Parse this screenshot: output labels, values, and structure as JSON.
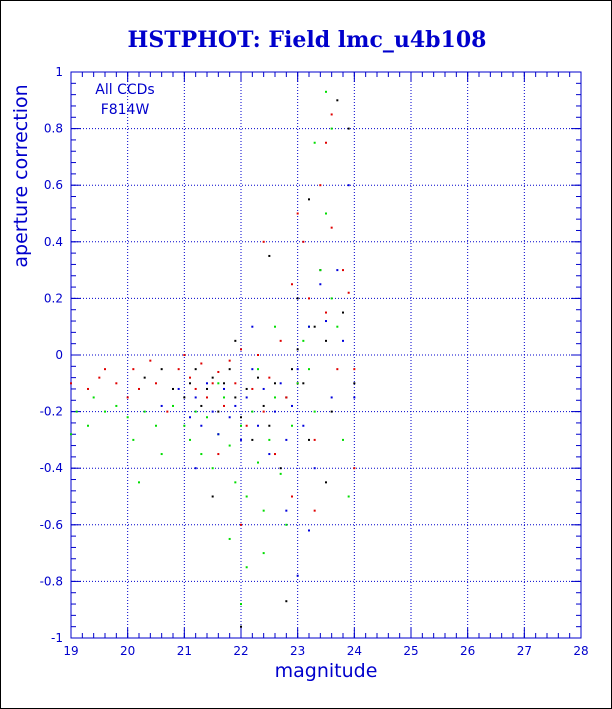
{
  "chart_data": {
    "type": "scatter",
    "title": "HSTPHOT: Field lmc_u4b108",
    "xlabel": "magnitude",
    "ylabel": "aperture correction",
    "xlim": [
      19,
      28
    ],
    "ylim": [
      -1,
      1
    ],
    "x_ticks": [
      19,
      20,
      21,
      22,
      23,
      24,
      25,
      26,
      27,
      28
    ],
    "y_ticks": [
      -1,
      -0.8,
      -0.6,
      -0.4,
      -0.2,
      0,
      0.2,
      0.4,
      0.6,
      0.8,
      1
    ],
    "grid": "dotted",
    "annotations": [
      "All CCDs",
      "F814W"
    ],
    "colors": {
      "axis": "#0000cc",
      "title": "#0000cc",
      "black": "#000000",
      "red": "#e00000",
      "green": "#00dd00",
      "blue": "#0000dd"
    },
    "series": [
      {
        "color": "black",
        "points": [
          [
            20.3,
            -0.08
          ],
          [
            20.6,
            -0.05
          ],
          [
            20.8,
            -0.12
          ],
          [
            21.0,
            -0.15
          ],
          [
            21.1,
            -0.1
          ],
          [
            21.2,
            -0.05
          ],
          [
            21.3,
            -0.18
          ],
          [
            21.4,
            -0.12
          ],
          [
            21.5,
            -0.08
          ],
          [
            21.6,
            -0.2
          ],
          [
            21.7,
            -0.1
          ],
          [
            21.8,
            -0.05
          ],
          [
            21.9,
            -0.15
          ],
          [
            22.0,
            -0.22
          ],
          [
            22.1,
            -0.12
          ],
          [
            22.2,
            -0.3
          ],
          [
            22.3,
            -0.08
          ],
          [
            22.4,
            -0.18
          ],
          [
            22.5,
            -0.25
          ],
          [
            22.6,
            -0.1
          ],
          [
            22.7,
            -0.4
          ],
          [
            22.8,
            -0.15
          ],
          [
            22.9,
            -0.05
          ],
          [
            23.0,
            0.02
          ],
          [
            23.1,
            -0.1
          ],
          [
            23.2,
            -0.3
          ],
          [
            23.3,
            0.1
          ],
          [
            23.4,
            0.3
          ],
          [
            23.5,
            0.05
          ],
          [
            23.6,
            -0.2
          ],
          [
            23.7,
            0.9
          ],
          [
            23.8,
            0.15
          ],
          [
            23.9,
            0.8
          ],
          [
            23.2,
            0.55
          ],
          [
            22.8,
            -0.87
          ],
          [
            22.0,
            -0.96
          ],
          [
            21.5,
            -0.5
          ],
          [
            22.5,
            0.35
          ],
          [
            23.0,
            0.2
          ],
          [
            21.9,
            0.05
          ],
          [
            23.5,
            -0.45
          ],
          [
            24.0,
            -0.1
          ]
        ]
      },
      {
        "color": "red",
        "points": [
          [
            19.0,
            -0.1
          ],
          [
            19.3,
            -0.12
          ],
          [
            19.5,
            -0.08
          ],
          [
            19.6,
            -0.05
          ],
          [
            19.8,
            -0.1
          ],
          [
            20.0,
            -0.15
          ],
          [
            20.1,
            -0.05
          ],
          [
            20.2,
            -0.12
          ],
          [
            20.4,
            -0.02
          ],
          [
            20.5,
            -0.1
          ],
          [
            20.7,
            -0.2
          ],
          [
            20.9,
            -0.05
          ],
          [
            21.0,
            0.0
          ],
          [
            21.1,
            -0.08
          ],
          [
            21.2,
            -0.12
          ],
          [
            21.3,
            -0.03
          ],
          [
            21.4,
            -0.15
          ],
          [
            21.5,
            -0.1
          ],
          [
            21.6,
            -0.06
          ],
          [
            21.7,
            -0.18
          ],
          [
            21.8,
            -0.02
          ],
          [
            21.9,
            -0.1
          ],
          [
            22.0,
            0.02
          ],
          [
            22.1,
            -0.25
          ],
          [
            22.2,
            -0.12
          ],
          [
            22.3,
            0.0
          ],
          [
            22.4,
            -0.2
          ],
          [
            22.5,
            -0.08
          ],
          [
            22.6,
            -0.35
          ],
          [
            22.7,
            0.05
          ],
          [
            22.8,
            -0.15
          ],
          [
            22.9,
            0.25
          ],
          [
            23.0,
            -0.1
          ],
          [
            23.1,
            0.4
          ],
          [
            23.2,
            0.2
          ],
          [
            23.3,
            -0.3
          ],
          [
            23.4,
            0.6
          ],
          [
            23.5,
            0.15
          ],
          [
            23.6,
            0.45
          ],
          [
            23.7,
            -0.05
          ],
          [
            23.8,
            0.3
          ],
          [
            23.9,
            0.22
          ],
          [
            24.0,
            -0.4
          ],
          [
            23.5,
            0.75
          ],
          [
            23.6,
            0.85
          ],
          [
            22.4,
            0.4
          ],
          [
            22.9,
            -0.5
          ],
          [
            23.3,
            -0.55
          ],
          [
            21.6,
            -0.35
          ],
          [
            22.0,
            -0.6
          ],
          [
            24.0,
            -0.05
          ],
          [
            23.0,
            0.5
          ]
        ]
      },
      {
        "color": "green",
        "points": [
          [
            19.0,
            -0.28
          ],
          [
            19.1,
            -0.2
          ],
          [
            19.3,
            -0.25
          ],
          [
            19.4,
            -0.15
          ],
          [
            19.6,
            -0.2
          ],
          [
            19.8,
            -0.18
          ],
          [
            20.0,
            -0.22
          ],
          [
            20.1,
            -0.3
          ],
          [
            20.3,
            -0.2
          ],
          [
            20.5,
            -0.25
          ],
          [
            20.6,
            -0.35
          ],
          [
            20.8,
            -0.18
          ],
          [
            21.0,
            -0.25
          ],
          [
            21.1,
            -0.3
          ],
          [
            21.2,
            -0.2
          ],
          [
            21.3,
            -0.35
          ],
          [
            21.4,
            -0.22
          ],
          [
            21.5,
            -0.4
          ],
          [
            21.6,
            -0.28
          ],
          [
            21.7,
            -0.15
          ],
          [
            21.8,
            -0.32
          ],
          [
            21.9,
            -0.45
          ],
          [
            22.0,
            -0.25
          ],
          [
            22.1,
            -0.5
          ],
          [
            22.2,
            -0.2
          ],
          [
            22.3,
            -0.38
          ],
          [
            22.4,
            -0.55
          ],
          [
            22.5,
            -0.3
          ],
          [
            22.6,
            -0.15
          ],
          [
            22.7,
            -0.42
          ],
          [
            22.8,
            -0.6
          ],
          [
            22.9,
            -0.25
          ],
          [
            23.0,
            -0.1
          ],
          [
            23.1,
            0.05
          ],
          [
            23.2,
            0.1
          ],
          [
            23.3,
            -0.2
          ],
          [
            23.4,
            0.3
          ],
          [
            23.5,
            0.5
          ],
          [
            23.6,
            0.2
          ],
          [
            23.7,
            0.1
          ],
          [
            23.8,
            -0.3
          ],
          [
            23.9,
            -0.5
          ],
          [
            23.5,
            0.93
          ],
          [
            23.6,
            0.8
          ],
          [
            22.0,
            -0.88
          ],
          [
            22.4,
            -0.7
          ],
          [
            22.1,
            -0.75
          ],
          [
            21.8,
            -0.65
          ],
          [
            22.6,
            0.1
          ],
          [
            22.3,
            -0.05
          ],
          [
            21.6,
            -0.1
          ],
          [
            23.3,
            0.75
          ],
          [
            23.2,
            -0.05
          ],
          [
            20.2,
            -0.45
          ]
        ]
      },
      {
        "color": "blue",
        "points": [
          [
            20.6,
            -0.18
          ],
          [
            20.9,
            -0.12
          ],
          [
            21.1,
            -0.22
          ],
          [
            21.2,
            -0.15
          ],
          [
            21.3,
            -0.25
          ],
          [
            21.4,
            -0.1
          ],
          [
            21.5,
            -0.2
          ],
          [
            21.6,
            -0.28
          ],
          [
            21.7,
            -0.12
          ],
          [
            21.8,
            -0.22
          ],
          [
            21.9,
            -0.18
          ],
          [
            22.0,
            -0.3
          ],
          [
            22.1,
            -0.15
          ],
          [
            22.2,
            -0.05
          ],
          [
            22.3,
            -0.25
          ],
          [
            22.4,
            -0.12
          ],
          [
            22.5,
            -0.35
          ],
          [
            22.6,
            -0.2
          ],
          [
            22.7,
            -0.1
          ],
          [
            22.8,
            -0.3
          ],
          [
            22.9,
            -0.18
          ],
          [
            23.0,
            -0.05
          ],
          [
            23.1,
            -0.25
          ],
          [
            23.2,
            0.1
          ],
          [
            23.3,
            -0.4
          ],
          [
            23.4,
            0.25
          ],
          [
            23.5,
            0.12
          ],
          [
            23.6,
            -0.15
          ],
          [
            23.7,
            0.3
          ],
          [
            23.8,
            0.05
          ],
          [
            23.9,
            0.6
          ],
          [
            24.0,
            -0.15
          ],
          [
            22.2,
            0.1
          ],
          [
            21.2,
            -0.4
          ],
          [
            22.8,
            -0.55
          ],
          [
            23.2,
            -0.62
          ],
          [
            23.0,
            -0.78
          ]
        ]
      }
    ]
  }
}
